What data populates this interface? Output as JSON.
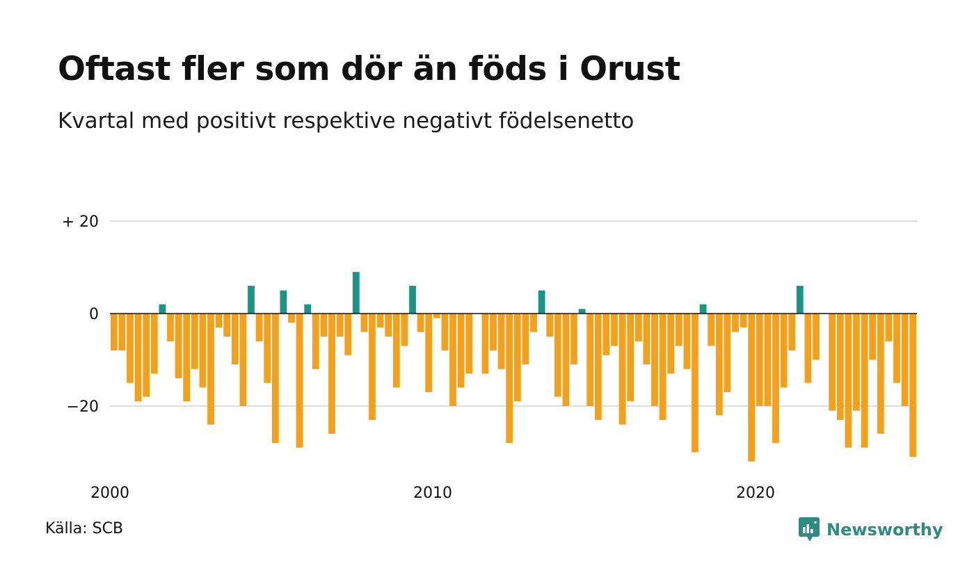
{
  "title": "Oftast fler som dör än föds i Orust",
  "subtitle": "Kvartal med positivt respektive negativt födelsenetto",
  "source": "Källa: SCB",
  "brand": "Newsworthy",
  "colors": {
    "positive": "#1a9585",
    "negative": "#f5a01a",
    "gridline": "#dddddd",
    "zero_line": "#111111",
    "brand": "#2e8b80"
  },
  "chart_data": {
    "type": "bar",
    "title": "Oftast fler som dör än föds i Orust",
    "subtitle": "Kvartal med positivt respektive negativt födelsenetto",
    "xlabel": "",
    "ylabel": "",
    "ylim": [
      -35,
      20
    ],
    "y_ticks": [
      {
        "value": 20,
        "label": "+ 20"
      },
      {
        "value": 0,
        "label": "0"
      },
      {
        "value": -20,
        "label": "−20"
      }
    ],
    "x_ticks": [
      {
        "index": 0,
        "label": "2000"
      },
      {
        "index": 40,
        "label": "2010"
      },
      {
        "index": 80,
        "label": "2020"
      }
    ],
    "grid": true,
    "start": "2000 Q1",
    "frequency": "quarterly",
    "values": [
      -8,
      -8,
      -15,
      -19,
      -18,
      -13,
      2,
      -6,
      -14,
      -19,
      -12,
      -16,
      -24,
      -3,
      -5,
      -11,
      -20,
      6,
      -6,
      -15,
      -28,
      5,
      -2,
      -29,
      2,
      -12,
      -5,
      -26,
      -5,
      -9,
      9,
      -4,
      -23,
      -3,
      -5,
      -16,
      -7,
      6,
      -4,
      -17,
      -1,
      -8,
      -20,
      -16,
      -13,
      0,
      -13,
      -8,
      -12,
      -28,
      -19,
      -11,
      -4,
      5,
      -5,
      -18,
      -20,
      -11,
      1,
      -20,
      -23,
      -9,
      -7,
      -24,
      -19,
      -6,
      -11,
      -20,
      -23,
      -13,
      -7,
      -12,
      -30,
      2,
      -7,
      -22,
      -17,
      -4,
      -3,
      -32,
      -20,
      -20,
      -28,
      -16,
      -8,
      6,
      -15,
      -10,
      0,
      -21,
      -23,
      -29,
      -21,
      -29,
      -10,
      -26,
      -6,
      -15,
      -20,
      -31
    ]
  }
}
